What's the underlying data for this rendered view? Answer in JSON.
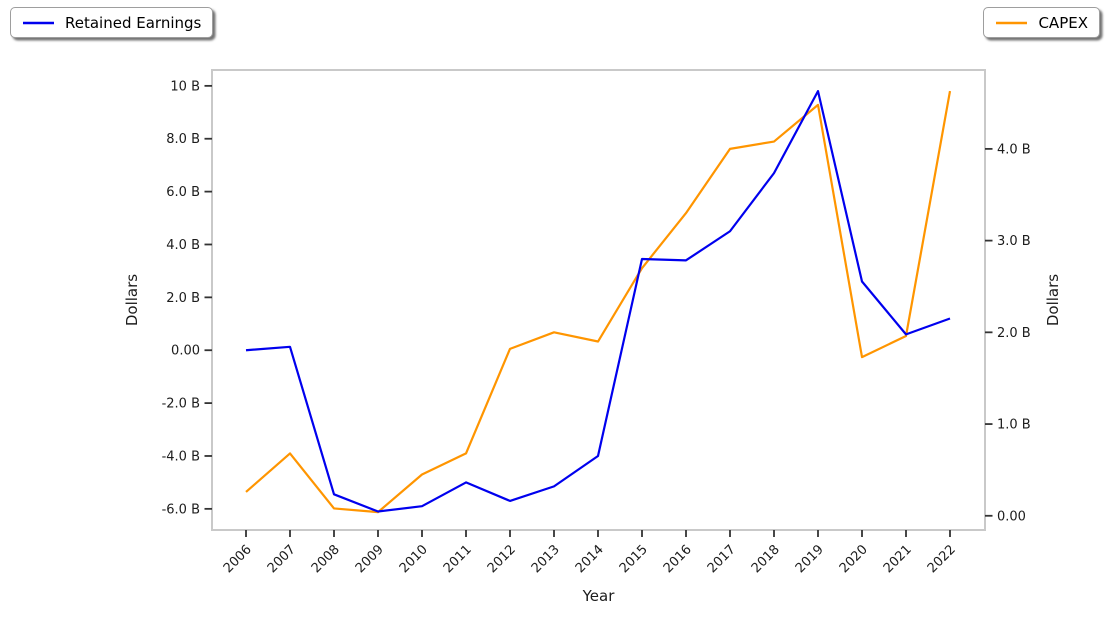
{
  "chart_data": {
    "type": "line",
    "title": "",
    "xlabel": "Year",
    "grid": false,
    "categories": [
      2006,
      2007,
      2008,
      2009,
      2010,
      2011,
      2012,
      2013,
      2014,
      2015,
      2016,
      2017,
      2018,
      2019,
      2020,
      2021,
      2022
    ],
    "x_tick_labels": [
      "2006",
      "2007",
      "2008",
      "2009",
      "2010",
      "2011",
      "2012",
      "2013",
      "2014",
      "2015",
      "2016",
      "2017",
      "2018",
      "2019",
      "2020",
      "2021",
      "2022"
    ],
    "series": [
      {
        "name": "Retained Earnings",
        "axis": "left",
        "color": "#0000ee",
        "values": [
          0.0,
          0.13,
          -5.45,
          -6.1,
          -5.9,
          -5.0,
          -5.7,
          -5.15,
          -4.0,
          3.45,
          3.4,
          4.5,
          6.7,
          9.8,
          2.6,
          0.6,
          1.2
        ]
      },
      {
        "name": "CAPEX",
        "axis": "right",
        "color": "#ff9500",
        "values": [
          0.26,
          0.68,
          0.08,
          0.04,
          0.45,
          0.68,
          1.82,
          2.0,
          1.9,
          2.7,
          3.3,
          4.0,
          4.08,
          4.48,
          1.73,
          1.96,
          4.63
        ]
      }
    ],
    "left_axis": {
      "label": "Dollars",
      "ylim": [
        -6.8,
        10.6
      ],
      "tick_values": [
        10,
        8,
        6,
        4,
        2,
        0,
        -2,
        -4,
        -6
      ],
      "tick_labels": [
        "10 B",
        "8.0 B",
        "6.0 B",
        "4.0 B",
        "2.0 B",
        "0.00",
        "-2.0 B",
        "-4.0 B",
        "-6.0 B"
      ]
    },
    "right_axis": {
      "label": "Dollars",
      "ylim": [
        -0.155,
        4.86
      ],
      "tick_values": [
        4,
        3,
        2,
        1,
        0
      ],
      "tick_labels": [
        "4.0 B",
        "3.0 B",
        "2.0 B",
        "1.0 B",
        "0.00"
      ]
    },
    "legend": [
      {
        "label": "Retained Earnings",
        "color": "#0000ee",
        "position": "top-left"
      },
      {
        "label": "CAPEX",
        "color": "#ff9500",
        "position": "top-right"
      }
    ]
  },
  "colors": {
    "background": "#ffffff",
    "spine": "#c9c9c9",
    "tick_mark": "#333333",
    "text": "#1c1c1c"
  }
}
